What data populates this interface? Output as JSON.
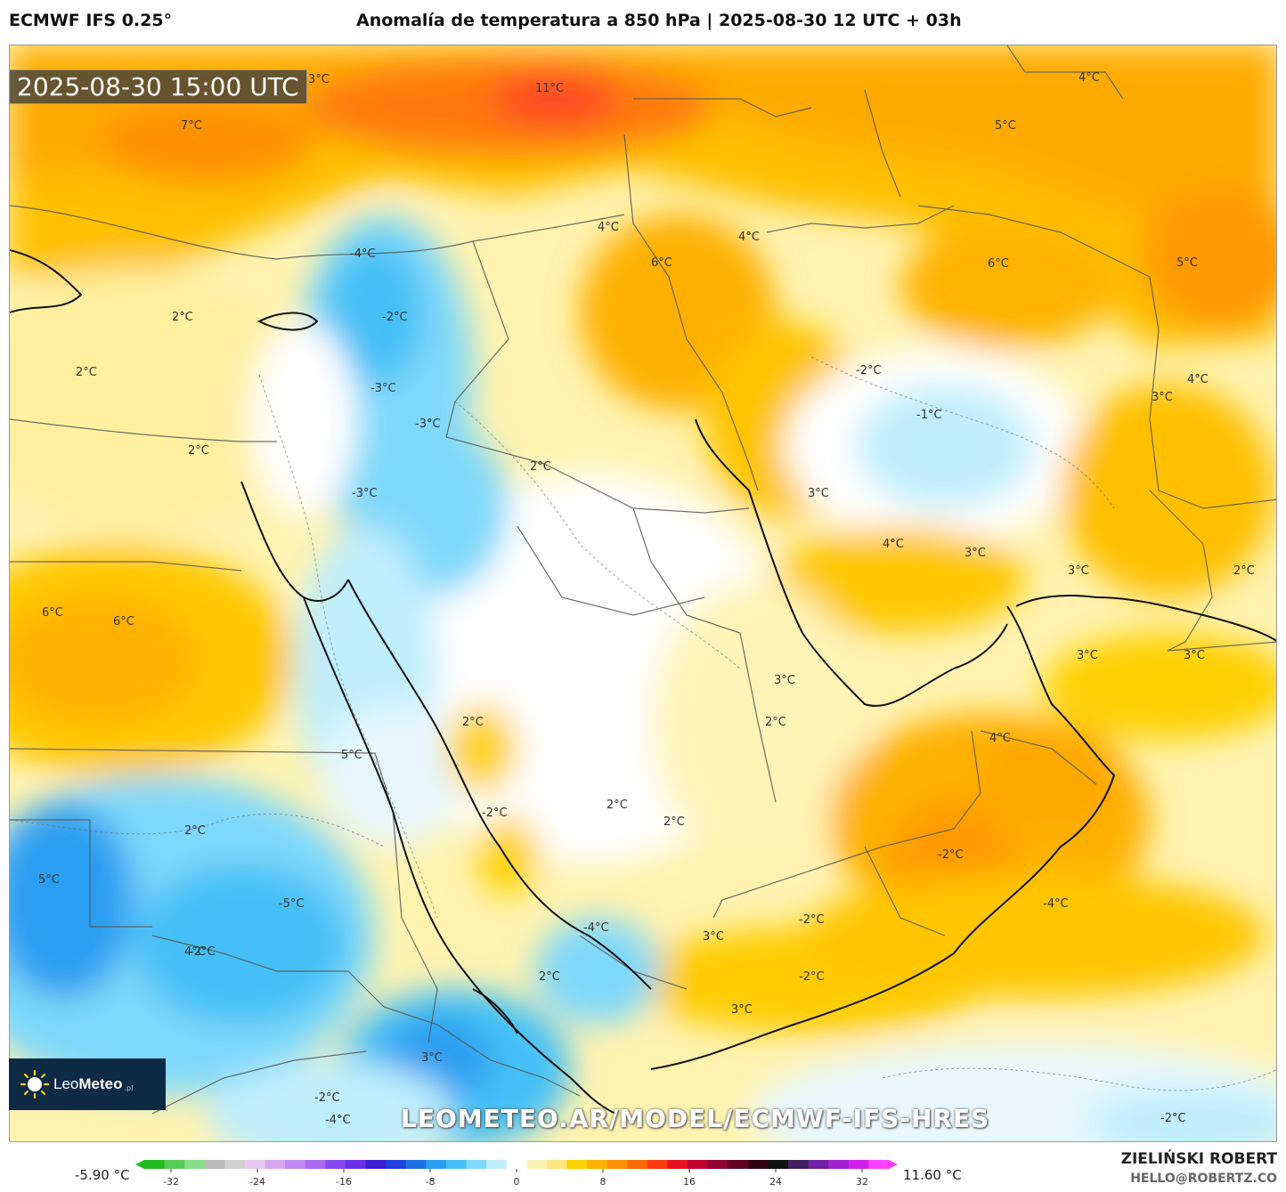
{
  "header": {
    "model": "ECMWF IFS 0.25°",
    "title": "Anomalía de temperatura a 850 hPa | 2025-08-30 12 UTC + 03h"
  },
  "map": {
    "timestamp": "2025-08-30 15:00 UTC",
    "watermark": "LEOMETEO.AR/MODEL/ECMWF-IFS-HRES",
    "logo": {
      "name_light": "Leo",
      "name_bold": "Meteo",
      "suffix": ".pl"
    },
    "labels": [
      {
        "text": "3°C"
      },
      {
        "text": "11°C"
      },
      {
        "text": "7°C"
      },
      {
        "text": "4°C"
      },
      {
        "text": "5°C"
      },
      {
        "text": "4°C"
      },
      {
        "text": "4°C"
      },
      {
        "text": "6°C"
      },
      {
        "text": "6°C"
      },
      {
        "text": "5°C"
      },
      {
        "text": "-4°C"
      },
      {
        "text": "-2°C"
      },
      {
        "text": "2°C"
      },
      {
        "text": "2°C"
      },
      {
        "text": "-3°C"
      },
      {
        "text": "-3°C"
      },
      {
        "text": "-2°C"
      },
      {
        "text": "-1°C"
      },
      {
        "text": "3°C"
      },
      {
        "text": "4°C"
      },
      {
        "text": "2°C"
      },
      {
        "text": "2°C"
      },
      {
        "text": "-3°C"
      },
      {
        "text": "3°C"
      },
      {
        "text": "3°C"
      },
      {
        "text": "4°C"
      },
      {
        "text": "3°C"
      },
      {
        "text": "2°C"
      },
      {
        "text": "3°C"
      },
      {
        "text": "6°C"
      },
      {
        "text": "6°C"
      },
      {
        "text": "3°C"
      },
      {
        "text": "3°C"
      },
      {
        "text": "2°C"
      },
      {
        "text": "2°C"
      },
      {
        "text": "4°C"
      },
      {
        "text": "5°C"
      },
      {
        "text": "-2°C"
      },
      {
        "text": "2°C"
      },
      {
        "text": "2°C"
      },
      {
        "text": "2°C"
      },
      {
        "text": "-2°C"
      },
      {
        "text": "5°C"
      },
      {
        "text": "-5°C"
      },
      {
        "text": "-4°C"
      },
      {
        "text": "4°C"
      },
      {
        "text": "-4°C"
      },
      {
        "text": "-2°C"
      },
      {
        "text": "3°C"
      },
      {
        "text": "2°C"
      },
      {
        "text": "-2°C"
      },
      {
        "text": "3°C"
      },
      {
        "text": "3°C"
      },
      {
        "text": "-4°C"
      },
      {
        "text": "-2°C"
      },
      {
        "text": "-2°C"
      },
      {
        "text": "-2°C"
      }
    ]
  },
  "colorbar": {
    "min_label": "-5.90 °C",
    "max_label": "11.60 °C",
    "ticks": [
      "-32",
      "-24",
      "-16",
      "-8",
      "0",
      "8",
      "16",
      "24",
      "32"
    ],
    "colors": [
      "#22bb22",
      "#55cc55",
      "#88dd88",
      "#bbbbbb",
      "#d0d0d0",
      "#e8c8f0",
      "#d4a8f0",
      "#c088f0",
      "#a868f0",
      "#8848f0",
      "#6a30e8",
      "#3a20d0",
      "#2040e0",
      "#1e70e6",
      "#2a9ef0",
      "#44c0f6",
      "#7ed8fa",
      "#bfeefc",
      "#ffffff",
      "#fff4b8",
      "#ffe680",
      "#ffd200",
      "#ffb300",
      "#ff9000",
      "#ff6a00",
      "#ff3c10",
      "#e81020",
      "#c00030",
      "#900030",
      "#600020",
      "#300010",
      "#101010",
      "#402060",
      "#7020a0",
      "#a020d0",
      "#d020f0",
      "#ff40ff"
    ]
  },
  "author": {
    "name": "ZIELIŃSKI ROBERT",
    "email": "HELLO@ROBERTZ.CO"
  }
}
